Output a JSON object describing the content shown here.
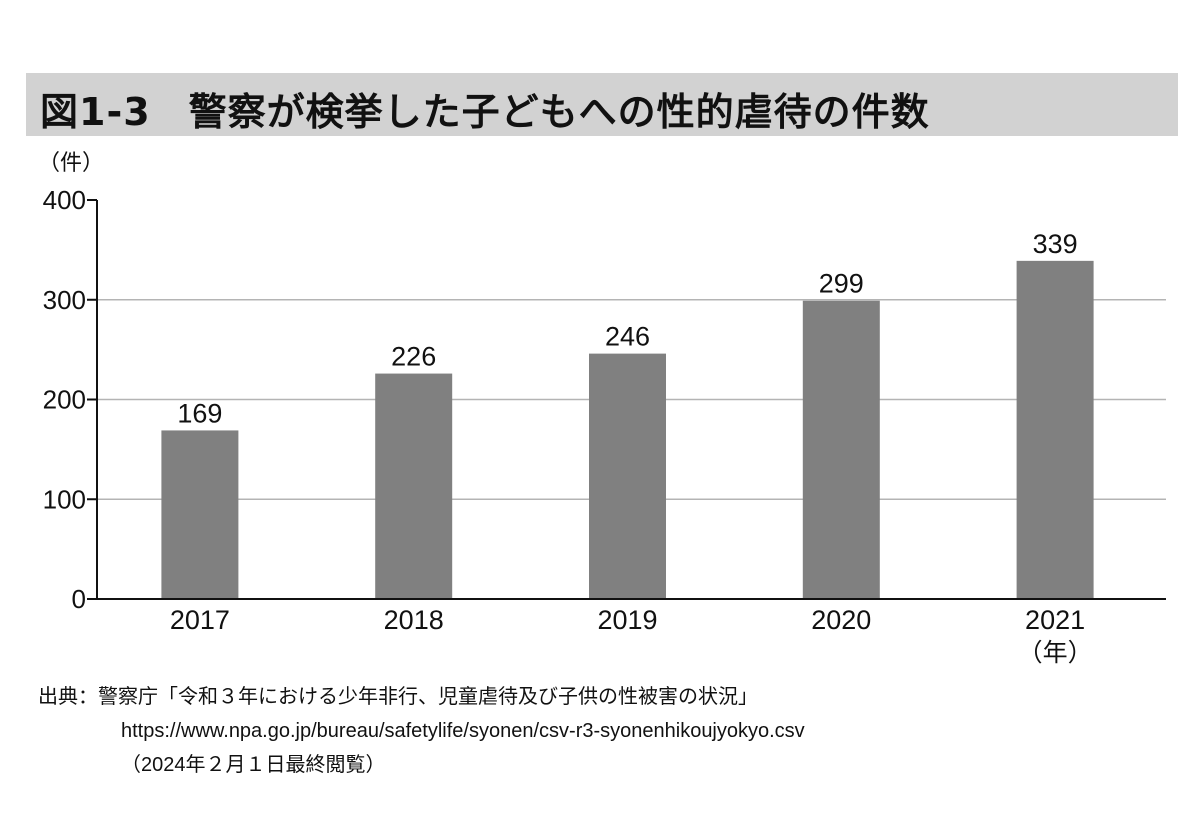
{
  "title": {
    "figure_number": "図1-3",
    "text": "警察が検挙した子どもへの性的虐待の件数"
  },
  "unit_label": "（件）",
  "x_unit_label": "（年）",
  "source": {
    "line1": "出典：警察庁「令和３年における少年非行、児童虐待及び子供の性被害の状況」",
    "line2": "https://www.npa.go.jp/bureau/safetylife/syonen/csv-r3-syonenhikoujyokyo.csv",
    "line3": "（2024年２月１日最終閲覧）"
  },
  "colors": {
    "bar": "#808080",
    "grid": "#b4b4b4",
    "axis": "#111111",
    "title_bg": "#d2d2d2"
  },
  "chart_data": {
    "type": "bar",
    "title": "図1-3 警察が検挙した子どもへの性的虐待の件数",
    "categories": [
      "2017",
      "2018",
      "2019",
      "2020",
      "2021"
    ],
    "values": [
      169,
      226,
      246,
      299,
      339
    ],
    "xlabel": "（年）",
    "ylabel": "（件）",
    "ylim": [
      0,
      400
    ],
    "yticks": [
      0,
      100,
      200,
      300,
      400
    ],
    "grid": true,
    "legend": null,
    "data_labels": true
  }
}
